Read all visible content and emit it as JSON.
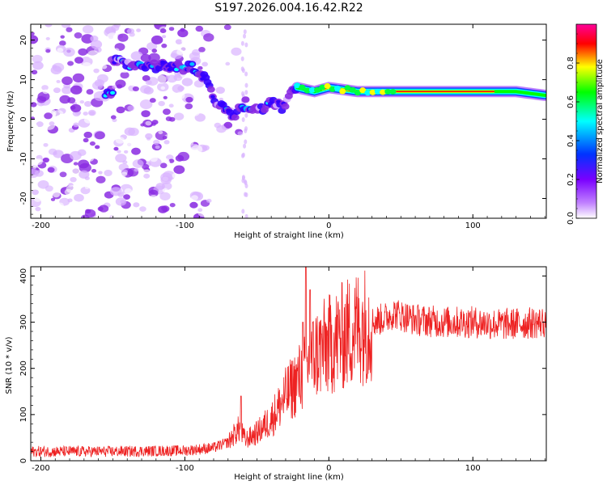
{
  "figure_title": "S197.2026.004.16.42.R22",
  "chart_data": [
    {
      "type": "heatmap",
      "title": "S197.2026.004.16.42.R22",
      "xlabel": "Height of straight line (km)",
      "ylabel": "Frequency (Hz)",
      "xlim": [
        -207,
        151
      ],
      "ylim": [
        -25,
        24
      ],
      "x_ticks": [
        -200,
        -100,
        0,
        100
      ],
      "y_ticks": [
        -20,
        -10,
        0,
        10,
        20
      ],
      "colorbar": {
        "label": "Normalized spectral amplitude",
        "range": [
          0,
          1
        ],
        "ticks": [
          "0.0",
          "0.2",
          "0.4",
          "0.6",
          "0.8"
        ],
        "tick_values": [
          0,
          0.2,
          0.4,
          0.6,
          0.8
        ]
      },
      "colormap": [
        "#ffffff",
        "#7a00ff",
        "#0033ff",
        "#00ffff",
        "#00ff00",
        "#ffff00",
        "#ff0000",
        "#ff00cc"
      ],
      "ridge": {
        "description_points_x": [
          -150,
          -140,
          -100,
          -95,
          -88,
          -83,
          -78,
          -72,
          -66,
          -58,
          -50,
          -40,
          -32,
          -27,
          -22,
          -10,
          0,
          20,
          40,
          60,
          90,
          110,
          130,
          151
        ],
        "description_points_y": [
          15,
          14,
          13,
          13,
          11,
          9,
          3,
          3,
          1,
          4,
          2,
          4,
          3,
          6,
          8,
          7,
          8,
          7,
          7,
          7,
          7,
          7,
          7,
          6
        ]
      }
    },
    {
      "type": "line",
      "xlabel": "Height of straight line (km)",
      "ylabel": "SNR (10 * v/v)",
      "xlim": [
        -207,
        151
      ],
      "ylim": [
        0,
        420
      ],
      "x_ticks": [
        -200,
        -100,
        0,
        100
      ],
      "y_ticks": [
        0,
        100,
        200,
        300,
        400
      ],
      "series": [
        {
          "name": "SNR",
          "color": "#ee2222",
          "envelope_x": [
            -207,
            -150,
            -100,
            -80,
            -70,
            -65,
            -62,
            -58,
            -50,
            -40,
            -30,
            -20,
            -15,
            -10,
            0,
            10,
            20,
            30,
            40,
            45,
            60,
            80,
            100,
            120,
            151
          ],
          "envelope_y": [
            20,
            20,
            22,
            28,
            40,
            60,
            70,
            45,
            60,
            90,
            140,
            180,
            200,
            230,
            250,
            270,
            290,
            300,
            310,
            320,
            305,
            300,
            300,
            295,
            300
          ],
          "spikes": [
            {
              "x": -61,
              "y": 140
            },
            {
              "x": -18,
              "y": 300
            },
            {
              "x": -16,
              "y": 420
            },
            {
              "x": -13,
              "y": 370
            }
          ]
        }
      ]
    }
  ]
}
